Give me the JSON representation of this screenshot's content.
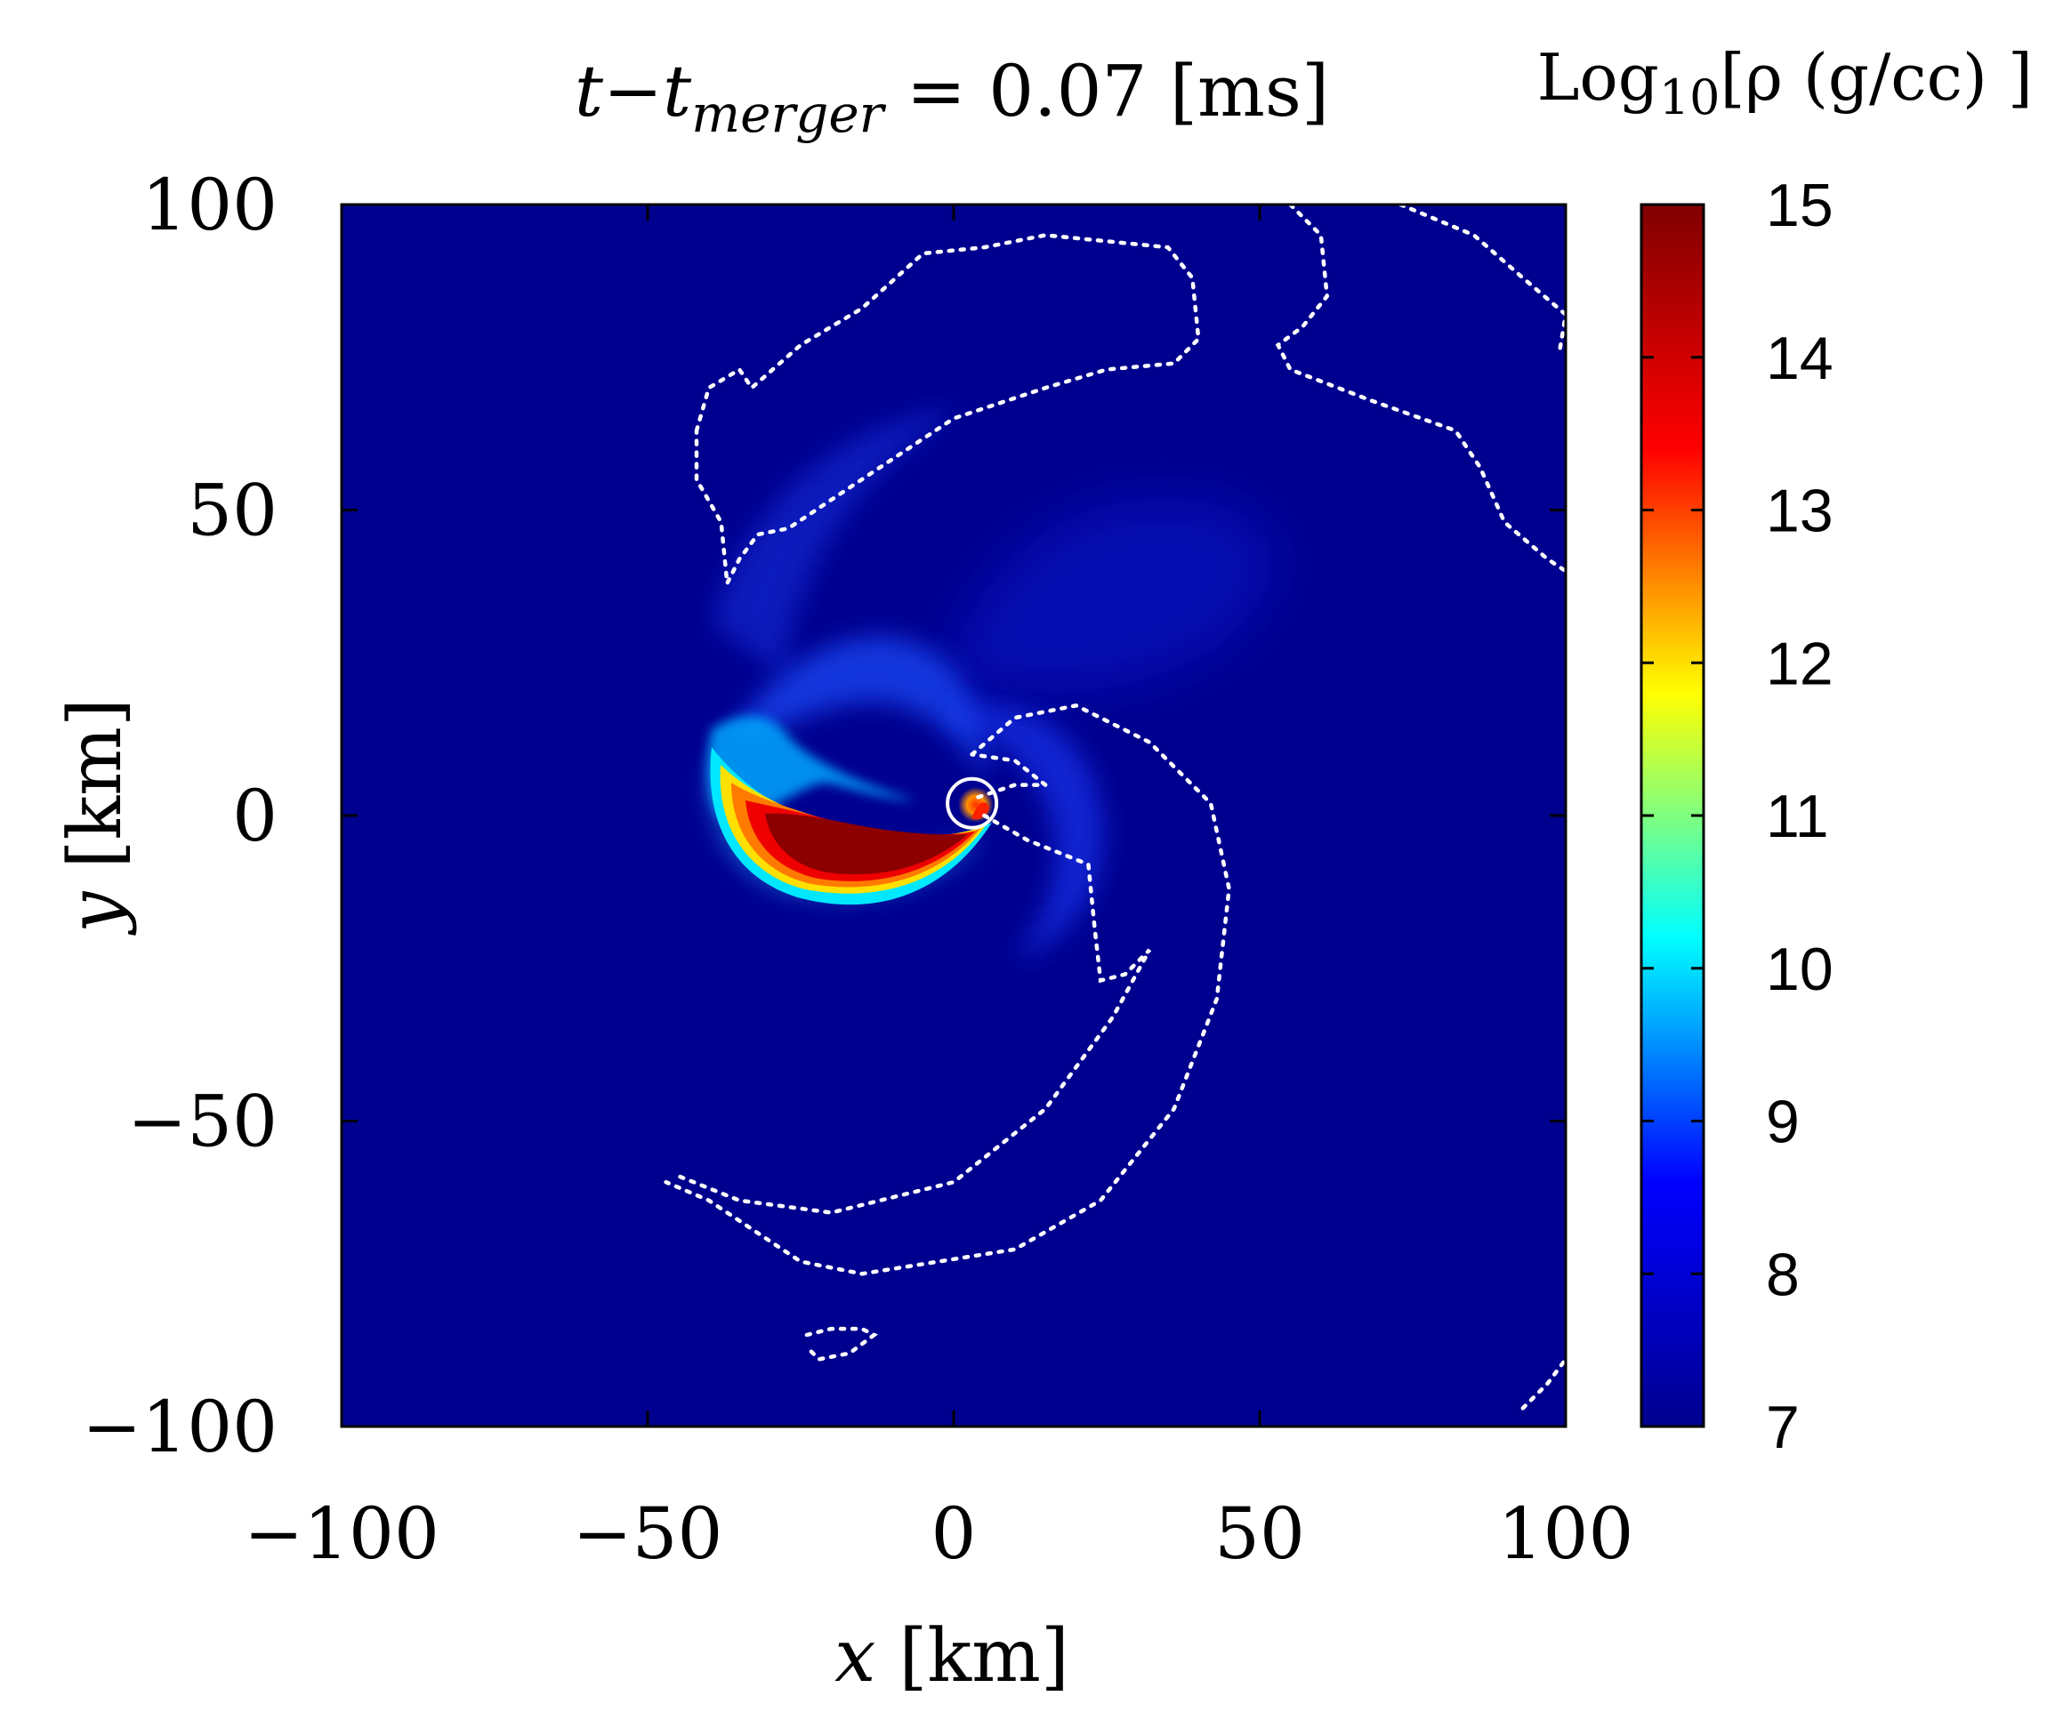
{
  "chart_data": {
    "type": "heatmap",
    "title": {
      "prefix": "t−t",
      "subscript": "merger",
      "suffix": " = 0.07 [ms]"
    },
    "xlabel": {
      "var": "x",
      "unit": " [km]"
    },
    "ylabel": {
      "var": "y",
      "unit": " [km]"
    },
    "xlim": [
      -100,
      100
    ],
    "ylim": [
      -100,
      100
    ],
    "x_ticks": [
      -100,
      -50,
      0,
      50,
      100
    ],
    "y_ticks": [
      -100,
      -50,
      0,
      50,
      100
    ],
    "x_tick_labels": [
      "−100",
      "−50",
      "0",
      "50",
      "100"
    ],
    "y_tick_labels": [
      "−100",
      "−50",
      "0",
      "50",
      "100"
    ],
    "colorbar": {
      "label_prefix": "Log",
      "label_sub": "10",
      "label_suffix": "[ρ (g/cc) ]",
      "range": [
        7,
        15
      ],
      "ticks": [
        7,
        8,
        9,
        10,
        11,
        12,
        13,
        14,
        15
      ],
      "tick_labels": [
        "7",
        "8",
        "9",
        "10",
        "11",
        "12",
        "13",
        "14",
        "15"
      ],
      "colormap": "jet",
      "stops": [
        "#00008f",
        "#0000ff",
        "#00ffff",
        "#ffff00",
        "#ff0000",
        "#800000"
      ]
    },
    "background_level": 7.1,
    "density_features": [
      {
        "name": "crescent-core",
        "log_rho": 14.8
      },
      {
        "name": "crescent-tail",
        "log_rho": 10.5
      },
      {
        "name": "central-hotspot",
        "log_rho": 12.5
      },
      {
        "name": "spiral-arm-outflow",
        "log_rho": 8.0
      }
    ],
    "contours": [
      {
        "name": "outer-contour-top",
        "style": "dotted",
        "color": "#ffffff",
        "points": [
          [
            -42,
            63
          ],
          [
            -40,
            70
          ],
          [
            -35,
            73
          ],
          [
            -33,
            70
          ],
          [
            -25,
            77
          ],
          [
            -15,
            83
          ],
          [
            -5,
            92
          ],
          [
            5,
            93
          ],
          [
            15,
            95
          ],
          [
            35,
            93
          ],
          [
            39,
            88
          ],
          [
            40,
            78
          ],
          [
            36,
            74
          ],
          [
            25,
            73
          ],
          [
            15,
            70
          ],
          [
            0,
            65
          ],
          [
            -15,
            55
          ],
          [
            -27,
            47
          ],
          [
            -32,
            46
          ],
          [
            -35,
            42
          ],
          [
            -37,
            38
          ],
          [
            -38,
            48
          ],
          [
            -42,
            55
          ],
          [
            -42,
            63
          ]
        ]
      },
      {
        "name": "outer-contour-right",
        "style": "dotted",
        "color": "#ffffff",
        "points": [
          [
            55,
            100
          ],
          [
            60,
            95
          ],
          [
            61,
            85
          ],
          [
            57,
            80
          ],
          [
            53,
            77
          ],
          [
            55,
            73
          ],
          [
            68,
            68
          ],
          [
            82,
            63
          ],
          [
            86,
            57
          ],
          [
            90,
            48
          ],
          [
            97,
            42
          ],
          [
            100,
            40
          ]
        ]
      },
      {
        "name": "outer-contour-corner",
        "style": "dotted",
        "color": "#ffffff",
        "points": [
          [
            73,
            100
          ],
          [
            85,
            95
          ],
          [
            93,
            88
          ],
          [
            100,
            82
          ],
          [
            99,
            76
          ]
        ]
      },
      {
        "name": "spiral-contour-outer",
        "style": "dotted",
        "color": "#ffffff",
        "points": [
          [
            3,
            10
          ],
          [
            10,
            16
          ],
          [
            20,
            18
          ],
          [
            32,
            12
          ],
          [
            42,
            2
          ],
          [
            45,
            -12
          ],
          [
            43,
            -30
          ],
          [
            36,
            -48
          ],
          [
            24,
            -63
          ],
          [
            10,
            -71
          ],
          [
            -15,
            -75
          ],
          [
            -25,
            -73
          ],
          [
            -40,
            -63
          ],
          [
            -47,
            -60
          ]
        ]
      },
      {
        "name": "spiral-contour-inner",
        "style": "dotted",
        "color": "#ffffff",
        "points": [
          [
            5,
            0
          ],
          [
            12,
            -4
          ],
          [
            22,
            -8
          ],
          [
            23,
            -18
          ],
          [
            24,
            -27
          ],
          [
            28,
            -26
          ],
          [
            32,
            -22
          ],
          [
            26,
            -33
          ],
          [
            15,
            -48
          ],
          [
            0,
            -60
          ],
          [
            -20,
            -65
          ],
          [
            -35,
            -63
          ],
          [
            -45,
            -59
          ]
        ]
      },
      {
        "name": "inner-contour-lobe",
        "style": "dotted",
        "color": "#ffffff",
        "points": [
          [
            4,
            3
          ],
          [
            10,
            5
          ],
          [
            15,
            5
          ],
          [
            10,
            9
          ],
          [
            3,
            10
          ]
        ]
      },
      {
        "name": "bottom-small-contour",
        "style": "dotted",
        "color": "#ffffff",
        "points": [
          [
            -24,
            -85
          ],
          [
            -20,
            -84
          ],
          [
            -15,
            -84
          ],
          [
            -13,
            -85
          ],
          [
            -17,
            -88
          ],
          [
            -22,
            -89
          ],
          [
            -24,
            -87
          ]
        ]
      },
      {
        "name": "bottom-right-contour",
        "style": "dotted",
        "color": "#ffffff",
        "points": [
          [
            93,
            -97
          ],
          [
            97,
            -93
          ],
          [
            100,
            -89
          ]
        ]
      }
    ],
    "markers": [
      {
        "name": "apparent-horizon-circle",
        "x": 3,
        "y": 2,
        "r_km": 4,
        "color": "#ffffff"
      }
    ]
  }
}
